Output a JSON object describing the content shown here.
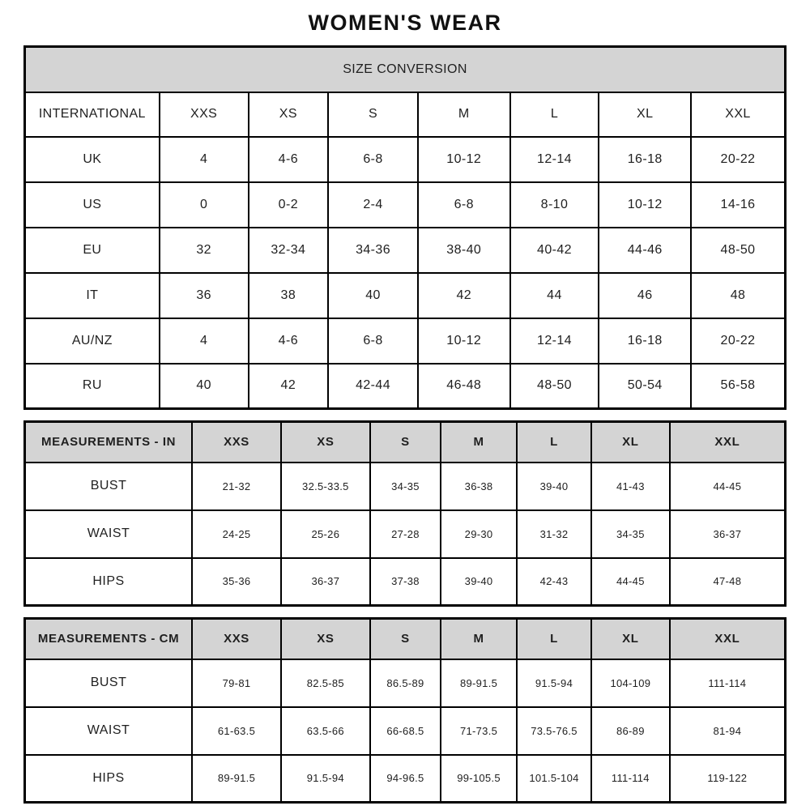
{
  "page": {
    "title": "WOMEN'S WEAR"
  },
  "colors": {
    "header_bg": "#d4d4d4",
    "border": "#000000",
    "text": "#1f1f1f",
    "background": "#ffffff"
  },
  "size_conversion": {
    "banner": "SIZE CONVERSION",
    "header": [
      "INTERNATIONAL",
      "XXS",
      "XS",
      "S",
      "M",
      "L",
      "XL",
      "XXL"
    ],
    "rows": [
      {
        "label": "UK",
        "values": [
          "4",
          "4-6",
          "6-8",
          "10-12",
          "12-14",
          "16-18",
          "20-22"
        ]
      },
      {
        "label": "US",
        "values": [
          "0",
          "0-2",
          "2-4",
          "6-8",
          "8-10",
          "10-12",
          "14-16"
        ]
      },
      {
        "label": "EU",
        "values": [
          "32",
          "32-34",
          "34-36",
          "38-40",
          "40-42",
          "44-46",
          "48-50"
        ]
      },
      {
        "label": "IT",
        "values": [
          "36",
          "38",
          "40",
          "42",
          "44",
          "46",
          "48"
        ]
      },
      {
        "label": "AU/NZ",
        "values": [
          "4",
          "4-6",
          "6-8",
          "10-12",
          "12-14",
          "16-18",
          "20-22"
        ]
      },
      {
        "label": "RU",
        "values": [
          "40",
          "42",
          "42-44",
          "46-48",
          "48-50",
          "50-54",
          "56-58"
        ]
      }
    ]
  },
  "measurements_in": {
    "header": [
      "MEASUREMENTS - IN",
      "XXS",
      "XS",
      "S",
      "M",
      "L",
      "XL",
      "XXL"
    ],
    "rows": [
      {
        "label": "BUST",
        "values": [
          "21-32",
          "32.5-33.5",
          "34-35",
          "36-38",
          "39-40",
          "41-43",
          "44-45"
        ]
      },
      {
        "label": "WAIST",
        "values": [
          "24-25",
          "25-26",
          "27-28",
          "29-30",
          "31-32",
          "34-35",
          "36-37"
        ]
      },
      {
        "label": "HIPS",
        "values": [
          "35-36",
          "36-37",
          "37-38",
          "39-40",
          "42-43",
          "44-45",
          "47-48"
        ]
      }
    ]
  },
  "measurements_cm": {
    "header": [
      "MEASUREMENTS - CM",
      "XXS",
      "XS",
      "S",
      "M",
      "L",
      "XL",
      "XXL"
    ],
    "rows": [
      {
        "label": "BUST",
        "values": [
          "79-81",
          "82.5-85",
          "86.5-89",
          "89-91.5",
          "91.5-94",
          "104-109",
          "111-114"
        ]
      },
      {
        "label": "WAIST",
        "values": [
          "61-63.5",
          "63.5-66",
          "66-68.5",
          "71-73.5",
          "73.5-76.5",
          "86-89",
          "81-94"
        ]
      },
      {
        "label": "HIPS",
        "values": [
          "89-91.5",
          "91.5-94",
          "94-96.5",
          "99-105.5",
          "101.5-104",
          "111-114",
          "119-122"
        ]
      }
    ]
  },
  "chart_data": {
    "type": "table",
    "title": "WOMEN'S WEAR",
    "tables": [
      {
        "name": "SIZE CONVERSION",
        "columns": [
          "INTERNATIONAL",
          "XXS",
          "XS",
          "S",
          "M",
          "L",
          "XL",
          "XXL"
        ],
        "rows": [
          [
            "UK",
            "4",
            "4-6",
            "6-8",
            "10-12",
            "12-14",
            "16-18",
            "20-22"
          ],
          [
            "US",
            "0",
            "0-2",
            "2-4",
            "6-8",
            "8-10",
            "10-12",
            "14-16"
          ],
          [
            "EU",
            "32",
            "32-34",
            "34-36",
            "38-40",
            "40-42",
            "44-46",
            "48-50"
          ],
          [
            "IT",
            "36",
            "38",
            "40",
            "42",
            "44",
            "46",
            "48"
          ],
          [
            "AU/NZ",
            "4",
            "4-6",
            "6-8",
            "10-12",
            "12-14",
            "16-18",
            "20-22"
          ],
          [
            "RU",
            "40",
            "42",
            "42-44",
            "46-48",
            "48-50",
            "50-54",
            "56-58"
          ]
        ]
      },
      {
        "name": "MEASUREMENTS - IN",
        "columns": [
          "MEASUREMENTS - IN",
          "XXS",
          "XS",
          "S",
          "M",
          "L",
          "XL",
          "XXL"
        ],
        "rows": [
          [
            "BUST",
            "21-32",
            "32.5-33.5",
            "34-35",
            "36-38",
            "39-40",
            "41-43",
            "44-45"
          ],
          [
            "WAIST",
            "24-25",
            "25-26",
            "27-28",
            "29-30",
            "31-32",
            "34-35",
            "36-37"
          ],
          [
            "HIPS",
            "35-36",
            "36-37",
            "37-38",
            "39-40",
            "42-43",
            "44-45",
            "47-48"
          ]
        ]
      },
      {
        "name": "MEASUREMENTS - CM",
        "columns": [
          "MEASUREMENTS - CM",
          "XXS",
          "XS",
          "S",
          "M",
          "L",
          "XL",
          "XXL"
        ],
        "rows": [
          [
            "BUST",
            "79-81",
            "82.5-85",
            "86.5-89",
            "89-91.5",
            "91.5-94",
            "104-109",
            "111-114"
          ],
          [
            "WAIST",
            "61-63.5",
            "63.5-66",
            "66-68.5",
            "71-73.5",
            "73.5-76.5",
            "86-89",
            "81-94"
          ],
          [
            "HIPS",
            "89-91.5",
            "91.5-94",
            "94-96.5",
            "99-105.5",
            "101.5-104",
            "111-114",
            "119-122"
          ]
        ]
      }
    ]
  }
}
